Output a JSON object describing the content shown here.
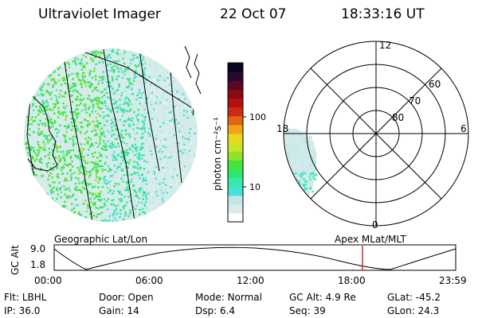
{
  "header": {
    "title": "Ultraviolet Imager",
    "date": "22 Oct 07",
    "time": "18:33:16 UT"
  },
  "colorbar": {
    "unit_label": "photon cm⁻²s⁻¹",
    "tick_labels": [
      "100",
      "10"
    ],
    "colors": [
      "#ffffff",
      "#d9ecea",
      "#c2e6e4",
      "#49e0d7",
      "#3ae7b0",
      "#2fe66f",
      "#45e43a",
      "#8fe32c",
      "#c8e425",
      "#e8d81e",
      "#f0a418",
      "#e26414",
      "#cc2d10",
      "#b3100f",
      "#8a0a13",
      "#5b0724",
      "#2a0632",
      "#0a0520"
    ]
  },
  "geo_panel": {
    "label": "Geographic Lat/Lon"
  },
  "polar_panel": {
    "label": "Apex MLat/MLT",
    "mlt_labels": [
      "12",
      "18",
      "6",
      "0"
    ],
    "mlat_labels": [
      "60",
      "70",
      "80"
    ]
  },
  "altitude_plot": {
    "ylabel": "GC Alt",
    "ytick_labels": [
      "9.0",
      "1.8"
    ],
    "xtick_labels": [
      "00:00",
      "06:00",
      "12:00",
      "18:00",
      "23:59"
    ],
    "current_time_marker_color": "#cc0000"
  },
  "info": {
    "row1": [
      {
        "label": "Flt:",
        "value": "LBHL"
      },
      {
        "label": "Door:",
        "value": "Open"
      },
      {
        "label": "Mode:",
        "value": "Normal"
      },
      {
        "label": "GC Alt:",
        "value": "4.9 Re"
      },
      {
        "label": "GLat:",
        "value": "-45.2"
      }
    ],
    "row2": [
      {
        "label": "IP:",
        "value": "36.0"
      },
      {
        "label": "Gain:",
        "value": "14"
      },
      {
        "label": "Dsp:",
        "value": "6.4"
      },
      {
        "label": "Seq:",
        "value": "39"
      },
      {
        "label": "GLon:",
        "value": "24.3"
      }
    ]
  }
}
